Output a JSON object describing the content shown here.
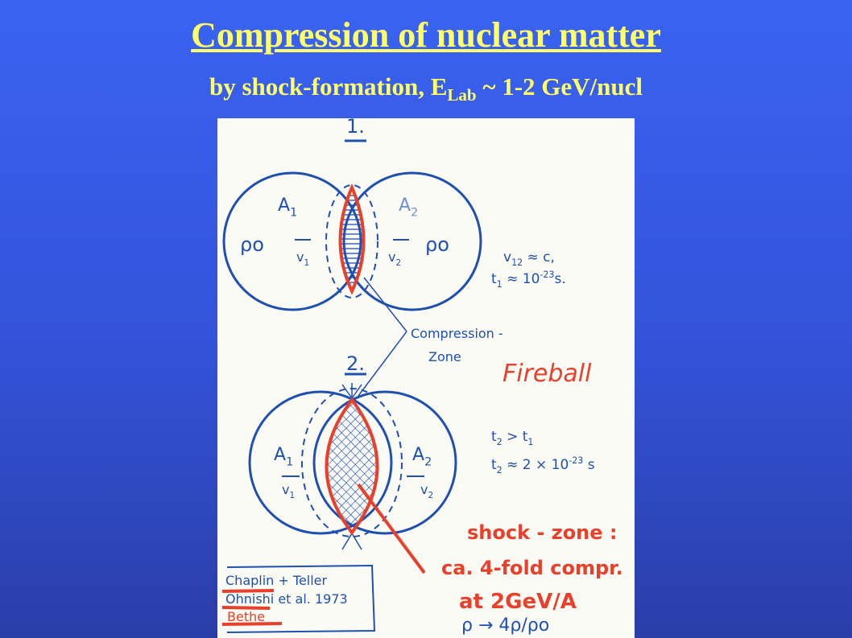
{
  "header": {
    "title": "Compression of nuclear matter",
    "subtitle": {
      "before": "by shock-formation, E",
      "sub": "Lab",
      "after": " ~ 1-2 GeV/nucl"
    }
  },
  "figure": {
    "labels": [
      {
        "parts": [
          "1."
        ]
      },
      {
        "parts": [
          "A",
          {
            "text": "1",
            "pos": "sub"
          }
        ]
      },
      {
        "parts": [
          "A",
          {
            "text": "2",
            "pos": "sub"
          }
        ]
      },
      {
        "parts": [
          "ρo"
        ]
      },
      {
        "parts": [
          "ρo"
        ]
      },
      {
        "parts": [
          "v",
          {
            "text": "1",
            "pos": "sub"
          }
        ]
      },
      {
        "parts": [
          "v",
          {
            "text": "2",
            "pos": "sub"
          }
        ]
      },
      {
        "parts": [
          "v",
          {
            "text": "12",
            "pos": "sub"
          },
          " ≈ c,"
        ]
      },
      {
        "parts": [
          "t",
          {
            "text": "1",
            "pos": "sub"
          },
          " ≈ 10",
          {
            "text": "-23",
            "pos": "sup"
          },
          "s."
        ]
      },
      {
        "parts": [
          "Compression -"
        ]
      },
      {
        "parts": [
          "Zone"
        ]
      },
      {
        "parts": [
          "2."
        ]
      },
      {
        "parts": [
          "Fireball"
        ]
      },
      {
        "parts": [
          "A",
          {
            "text": "1",
            "pos": "sub"
          }
        ]
      },
      {
        "parts": [
          "A",
          {
            "text": "2",
            "pos": "sub"
          }
        ]
      },
      {
        "parts": [
          "v",
          {
            "text": "1",
            "pos": "sub"
          }
        ]
      },
      {
        "parts": [
          "v",
          {
            "text": "2",
            "pos": "sub"
          }
        ]
      },
      {
        "parts": [
          "t",
          {
            "text": "2",
            "pos": "sub"
          },
          " > t",
          {
            "text": "1",
            "pos": "sub"
          }
        ]
      },
      {
        "parts": [
          "t",
          {
            "text": "2",
            "pos": "sub"
          },
          " ≈ 2 × 10",
          {
            "text": "-23",
            "pos": "sup"
          },
          " s"
        ]
      },
      {
        "parts": [
          "shock - zone :"
        ]
      },
      {
        "parts": [
          "ca. 4-fold compr."
        ]
      },
      {
        "parts": [
          "at 2GeV/A"
        ]
      },
      {
        "parts": [
          "ρ → 4ρ/ρo"
        ]
      },
      {
        "parts": [
          "Chaplin + Teller"
        ]
      },
      {
        "parts": [
          "Ohnishi et al. 1973"
        ]
      },
      {
        "parts": [
          "Bethe"
        ]
      }
    ]
  }
}
